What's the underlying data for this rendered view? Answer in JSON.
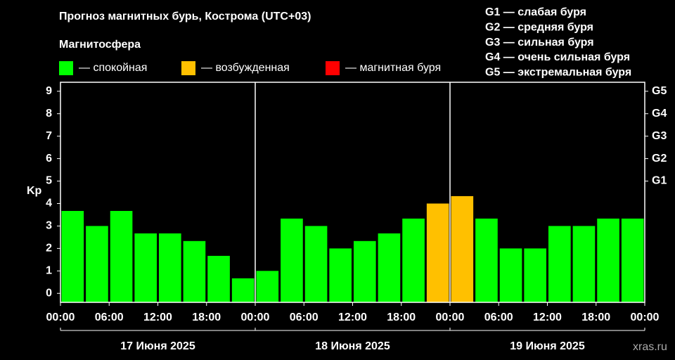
{
  "chart_data": {
    "type": "bar",
    "title": "Прогноз магнитных бурь, Кострома (UTC+03)",
    "legend_title": "Магнитосфера",
    "legend": [
      {
        "name": "— спокойная",
        "color": "#00ff00"
      },
      {
        "name": "— возбужденная",
        "color": "#ffc000"
      },
      {
        "name": "— магнитная буря",
        "color": "#ff0000"
      }
    ],
    "storm_scale": [
      "G1 — слабая буря",
      "G2 — средняя буря",
      "G3 — сильная буря",
      "G4 — очень сильная буря",
      "G5 — экстремальная буря"
    ],
    "ylabel": "Kp",
    "values": [
      3.67,
      3,
      3.67,
      2.67,
      2.67,
      2.33,
      1.67,
      0.67,
      1,
      3.33,
      3,
      2,
      2.33,
      2.67,
      3.33,
      4,
      4.33,
      3.33,
      2,
      2,
      3,
      3,
      3.33,
      3.33
    ],
    "colors": [
      "#00ff00",
      "#00ff00",
      "#00ff00",
      "#00ff00",
      "#00ff00",
      "#00ff00",
      "#00ff00",
      "#00ff00",
      "#00ff00",
      "#00ff00",
      "#00ff00",
      "#00ff00",
      "#00ff00",
      "#00ff00",
      "#00ff00",
      "#ffc000",
      "#ffc000",
      "#00ff00",
      "#00ff00",
      "#00ff00",
      "#00ff00",
      "#00ff00",
      "#00ff00",
      "#00ff00"
    ],
    "ylim": [
      -0.4,
      9.4
    ],
    "yticks": [
      0,
      1,
      2,
      3,
      4,
      5,
      6,
      7,
      8,
      9
    ],
    "y2lim": [
      -0.4,
      9.4
    ],
    "y2ticks": [
      {
        "value": 5,
        "label": "G1"
      },
      {
        "value": 6,
        "label": "G2"
      },
      {
        "value": 7,
        "label": "G3"
      },
      {
        "value": 8,
        "label": "G4"
      },
      {
        "value": 9,
        "label": "G5"
      }
    ],
    "xlim": [
      0,
      24
    ],
    "xticks": [
      {
        "value": 0,
        "label": "00:00"
      },
      {
        "value": 2,
        "label": "06:00"
      },
      {
        "value": 4,
        "label": "12:00"
      },
      {
        "value": 6,
        "label": "18:00"
      },
      {
        "value": 8,
        "label": "00:00"
      },
      {
        "value": 10,
        "label": "06:00"
      },
      {
        "value": 12,
        "label": "12:00"
      },
      {
        "value": 14,
        "label": "18:00"
      },
      {
        "value": 16,
        "label": "00:00"
      },
      {
        "value": 18,
        "label": "06:00"
      },
      {
        "value": 20,
        "label": "12:00"
      },
      {
        "value": 22,
        "label": "18:00"
      },
      {
        "value": 24,
        "label": "00:00"
      }
    ],
    "days": [
      "17 Июня 2025",
      "18 Июня 2025",
      "19 Июня 2025"
    ],
    "watermark": "xras.ru",
    "grid": false
  }
}
